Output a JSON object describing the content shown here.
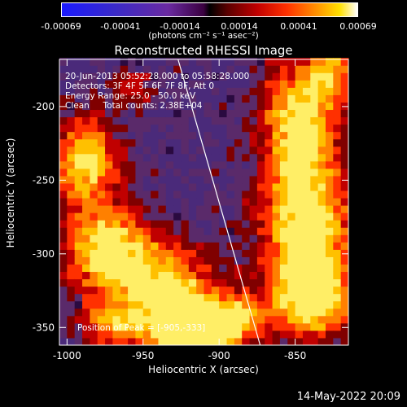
{
  "colorbar": {
    "ticks": [
      "-0.00069",
      "-0.00041",
      "-0.00014",
      "0.00014",
      "0.00041",
      "0.00069"
    ],
    "unit": "(photons cm⁻² s⁻¹ asec⁻²)"
  },
  "chart_data": {
    "type": "heatmap",
    "title": "Reconstructed RHESSI Image",
    "xlabel": "Heliocentric X (arcsec)",
    "ylabel": "Heliocentric Y (arcsec)",
    "xlim": [
      -1005,
      -815
    ],
    "ylim": [
      -362,
      -168
    ],
    "xticks": [
      -1000,
      -950,
      -900,
      -850
    ],
    "yticks": [
      -200,
      -250,
      -300,
      -350
    ],
    "xtick_labels": [
      "-1000",
      "-950",
      "-900",
      "-850"
    ],
    "ytick_labels": [
      "-200",
      "-250",
      "-300",
      "-350"
    ],
    "limb_line": {
      "x": [
        -927,
        -873
      ],
      "y": [
        -168,
        -362
      ]
    },
    "peak": {
      "x": -905,
      "y": -333
    },
    "annotations": [
      "20-Jun-2013 05:52:28.000 to 05:58:28.000",
      "Detectors: 3F 4F 5F 6F 7F 8F, Att 0",
      "Energy Range: 25.0 - 50.0 keV",
      "Clean     Total counts: 2.38E+04"
    ],
    "peak_label": "Position of Peak = [-905,-333]"
  },
  "footer": {
    "date": "14-May-2022 20:09"
  }
}
